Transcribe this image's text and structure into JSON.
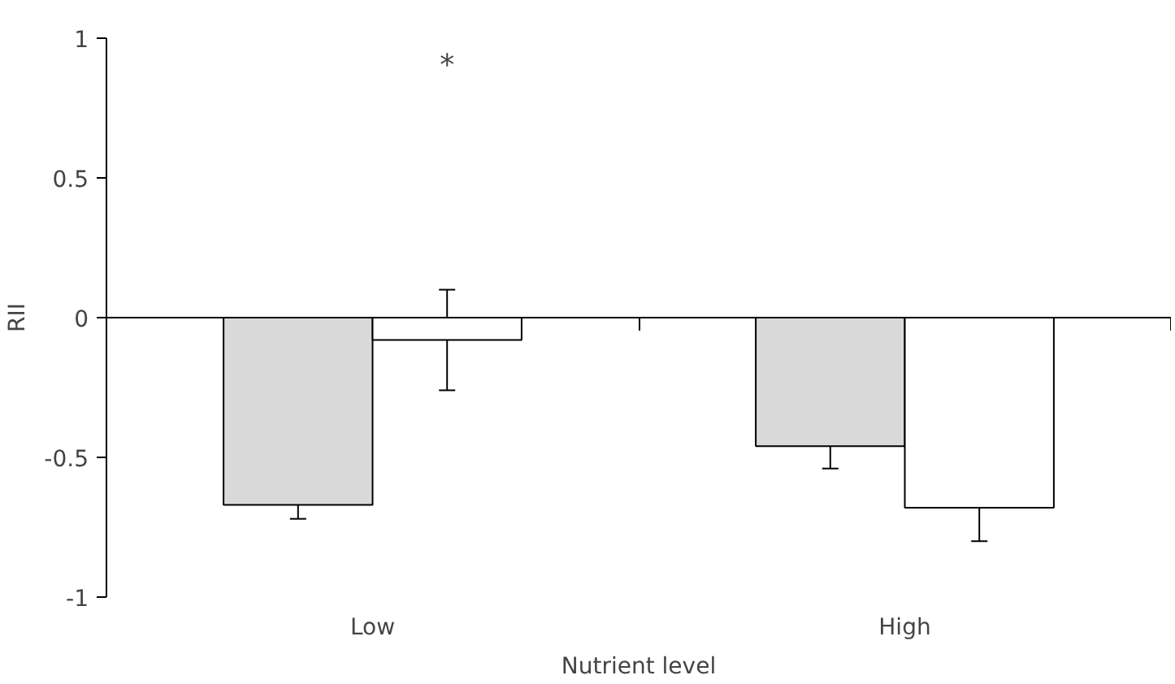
{
  "chart_data": {
    "type": "bar",
    "xlabel": "Nutrient level",
    "ylabel": "RII",
    "categories": [
      "Low",
      "High"
    ],
    "series": [
      {
        "color": "#d9d9d9",
        "values": [
          -0.67,
          -0.46
        ],
        "errors": [
          0.05,
          0.08
        ]
      },
      {
        "color": "#ffffff",
        "values": [
          -0.08,
          -0.68
        ],
        "errors": [
          0.18,
          0.12
        ]
      }
    ],
    "ylim": [
      -1,
      1
    ],
    "yticks": [
      -1,
      -0.5,
      0,
      0.5,
      1
    ],
    "annotations": [
      "*"
    ]
  }
}
